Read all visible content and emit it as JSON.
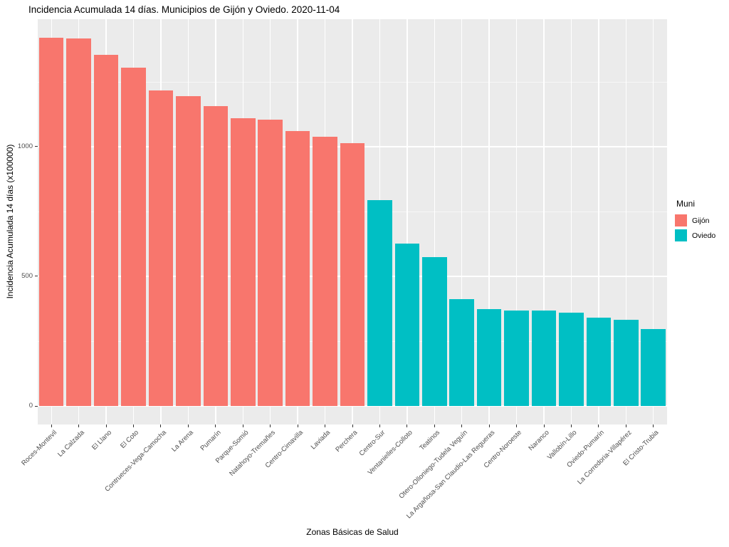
{
  "page": {
    "title": "Incidencia Acumulada 14 días. Municipios de Gijón y Oviedo. 2020-11-04"
  },
  "axis_x": {
    "title": "Zonas Básicas de Salud"
  },
  "axis_y": {
    "title": "Incidencia Acumulada 14 días (x100000)",
    "tick_labels": [
      "0",
      "500",
      "1000"
    ]
  },
  "legend": {
    "title": "Muni",
    "items": [
      {
        "label": "Gijón",
        "color": "#F8766D"
      },
      {
        "label": "Oviedo",
        "color": "#00BFC4"
      }
    ]
  },
  "colors": {
    "gijon_bar": "#F8766D",
    "oviedo_bar": "#00BFC4",
    "panel_background": "#EBEBEB",
    "grid_major": "#FFFFFF",
    "tick_text": "#4D4D4D"
  },
  "chart_data": {
    "type": "bar",
    "title": "Incidencia Acumulada 14 días. Municipios de Gijón y Oviedo. 2020-11-04",
    "xlabel": "Zonas Básicas de Salud",
    "ylabel": "Incidencia Acumulada 14 días (x100000)",
    "legend_title": "Muni",
    "legend_position": "right",
    "grid": true,
    "ylim": [
      -71,
      1491
    ],
    "y_major_ticks": [
      0,
      500,
      1000
    ],
    "y_minor_gridlines": [
      250,
      750,
      1250
    ],
    "series": [
      {
        "name": "Gijón",
        "color": "#F8766D"
      },
      {
        "name": "Oviedo",
        "color": "#00BFC4"
      }
    ],
    "bars": [
      {
        "category": "Roces-Montevil",
        "muni": "Gijón",
        "value": 1420
      },
      {
        "category": "La Calzada",
        "muni": "Gijón",
        "value": 1416
      },
      {
        "category": "El Llano",
        "muni": "Gijón",
        "value": 1353
      },
      {
        "category": "El Coto",
        "muni": "Gijón",
        "value": 1304
      },
      {
        "category": "Contrueces-Vega-Camocha",
        "muni": "Gijón",
        "value": 1216
      },
      {
        "category": "La Arena",
        "muni": "Gijón",
        "value": 1195
      },
      {
        "category": "Pumarín",
        "muni": "Gijón",
        "value": 1157
      },
      {
        "category": "Parque-Somió",
        "muni": "Gijón",
        "value": 1110
      },
      {
        "category": "Natahoyo-Tremañes",
        "muni": "Gijón",
        "value": 1103
      },
      {
        "category": "Centro-Cimavilla",
        "muni": "Gijón",
        "value": 1060
      },
      {
        "category": "Laviada",
        "muni": "Gijón",
        "value": 1038
      },
      {
        "category": "Perchera",
        "muni": "Gijón",
        "value": 1014
      },
      {
        "category": "Centro-Sur",
        "muni": "Oviedo",
        "value": 795
      },
      {
        "category": "Ventanielles-Colloto",
        "muni": "Oviedo",
        "value": 625
      },
      {
        "category": "Teatinos",
        "muni": "Oviedo",
        "value": 574
      },
      {
        "category": "Otero-Olloniego-Tudela Veguín",
        "muni": "Oviedo",
        "value": 412
      },
      {
        "category": "La Argañosa-San Claudio-Las Regueras",
        "muni": "Oviedo",
        "value": 375
      },
      {
        "category": "Centro-Noroeste",
        "muni": "Oviedo",
        "value": 368
      },
      {
        "category": "Naranco",
        "muni": "Oviedo",
        "value": 368
      },
      {
        "category": "Vallobín-Lillo",
        "muni": "Oviedo",
        "value": 359
      },
      {
        "category": "Oviedo-Pumarín",
        "muni": "Oviedo",
        "value": 341
      },
      {
        "category": "La Corredoria-Villapérez",
        "muni": "Oviedo",
        "value": 333
      },
      {
        "category": "El Cristo-Trubia",
        "muni": "Oviedo",
        "value": 298
      }
    ]
  }
}
